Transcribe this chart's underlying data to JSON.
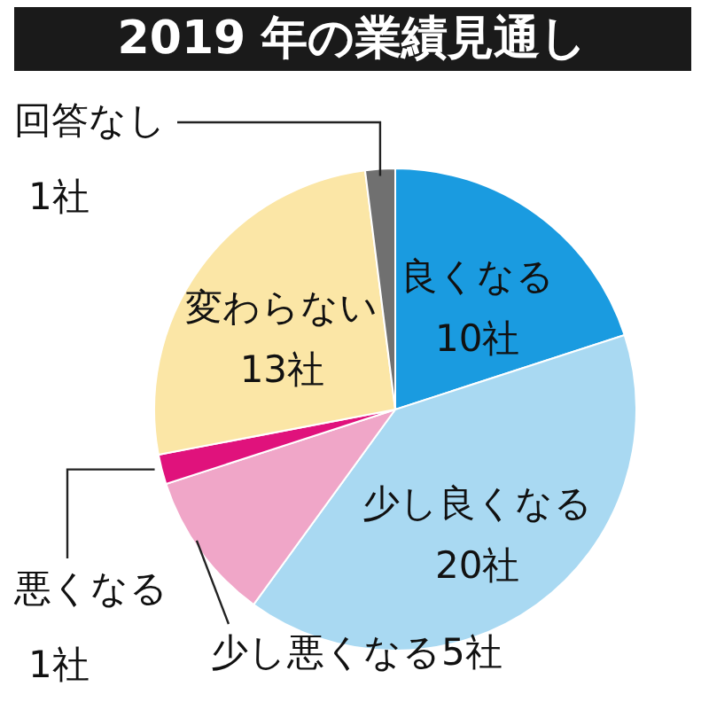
{
  "chart_data": {
    "type": "pie",
    "title": "2019 年の業績見通し",
    "categories": [
      "良くなる",
      "少し良くなる",
      "少し悪くなる",
      "悪くなる",
      "変わらない",
      "回答なし"
    ],
    "values": [
      10,
      20,
      5,
      1,
      13,
      1
    ],
    "value_labels": [
      "10社",
      "20社",
      "5社",
      "1社",
      "13社",
      "1社"
    ],
    "colors": [
      "#1a9be0",
      "#a9d9f2",
      "#f0a6c8",
      "#e0127c",
      "#fbe6a6",
      "#707070"
    ]
  }
}
